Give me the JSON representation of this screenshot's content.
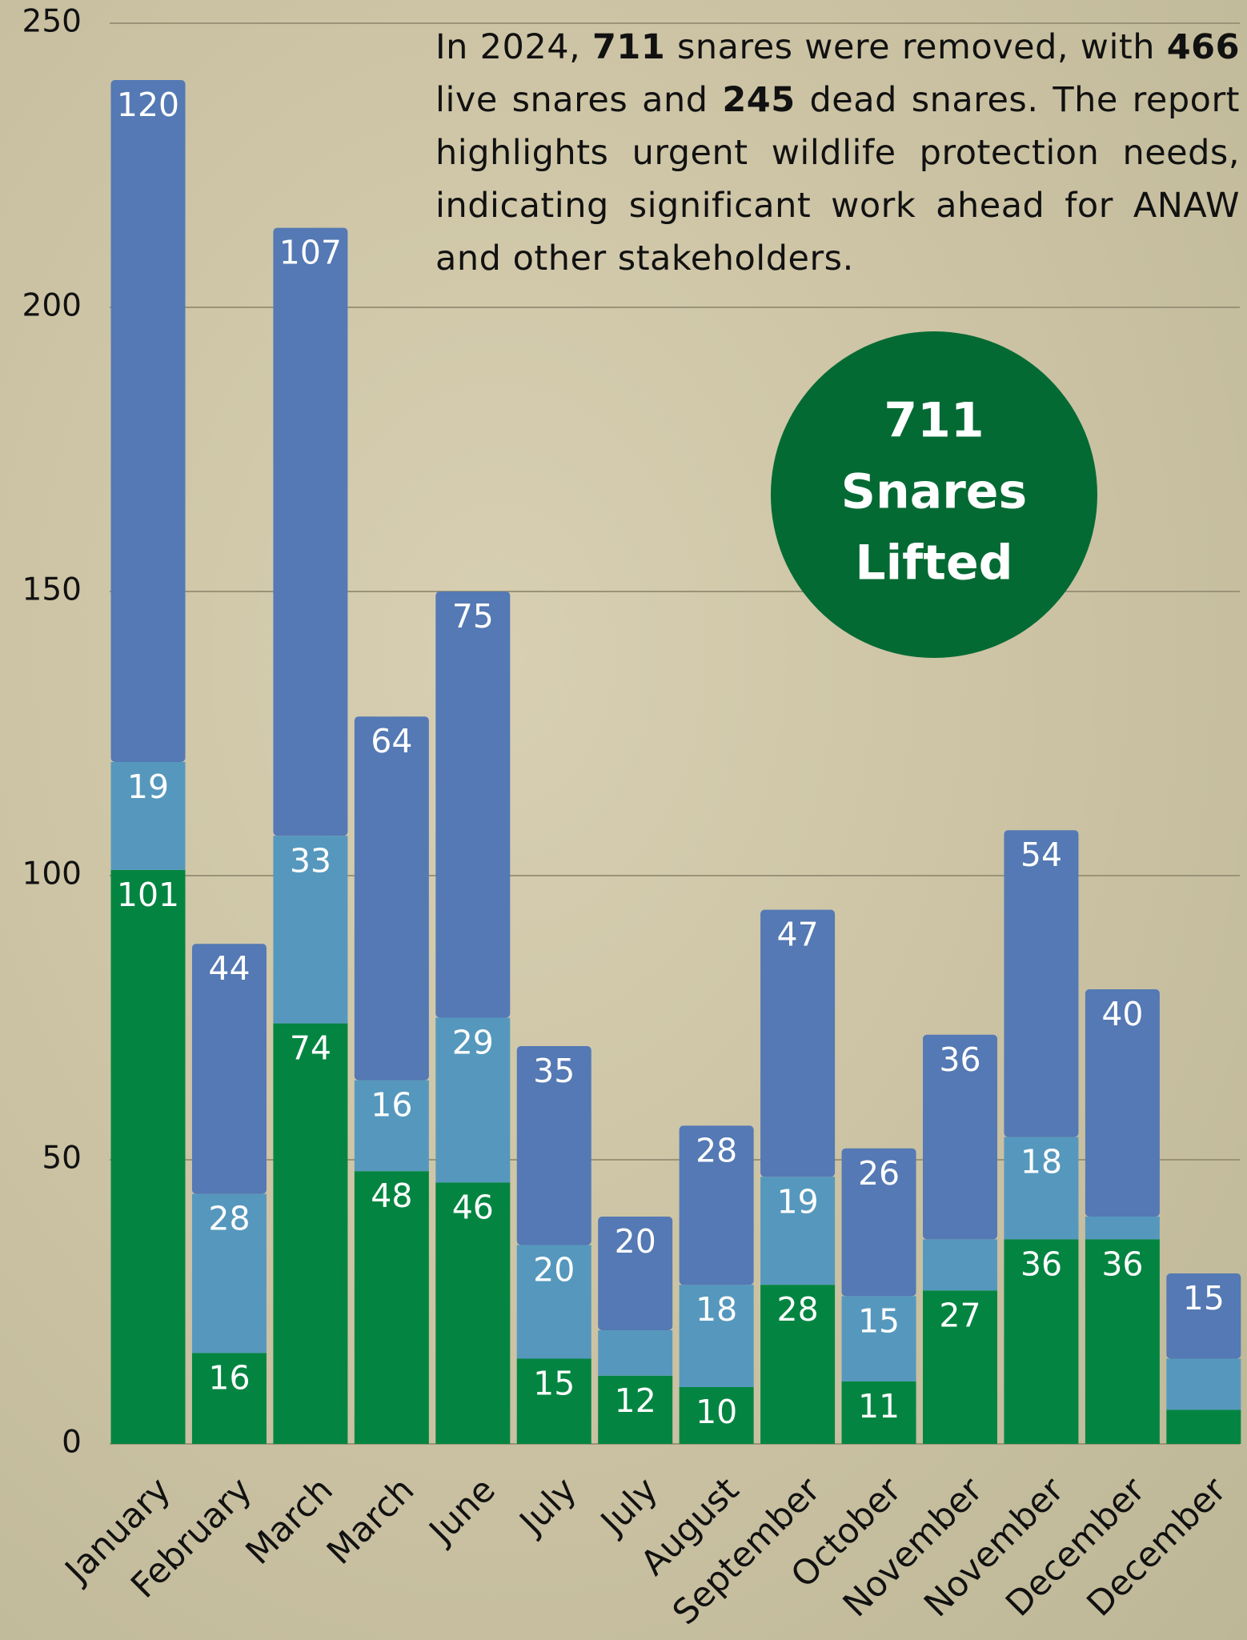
{
  "chart_data": {
    "type": "stacked_bar",
    "categories": [
      "January",
      "February",
      "March",
      "March",
      "June",
      "July",
      "July",
      "August",
      "September",
      "October",
      "November",
      "November",
      "December",
      "December"
    ],
    "series": [
      {
        "color": "#038541",
        "values": [
          101,
          16,
          74,
          48,
          46,
          15,
          12,
          10,
          28,
          11,
          27,
          36,
          36,
          6
        ],
        "value_labels": [
          "101",
          "16",
          "74",
          "48",
          "46",
          "15",
          "12",
          "10",
          "28",
          "11",
          "27",
          "36",
          "36",
          null
        ]
      },
      {
        "color": "#5698bd",
        "values": [
          19,
          28,
          33,
          16,
          29,
          20,
          8,
          18,
          19,
          15,
          9,
          18,
          4,
          9
        ],
        "value_labels": [
          "19",
          "28",
          "33",
          "16",
          "29",
          "20",
          null,
          "18",
          "19",
          "15",
          null,
          "18",
          null,
          null
        ]
      },
      {
        "color": "#5479b4",
        "values": [
          120,
          44,
          107,
          64,
          75,
          35,
          20,
          28,
          47,
          26,
          36,
          54,
          40,
          15
        ],
        "value_labels": [
          "120",
          "44",
          "107",
          "64",
          "75",
          "35",
          "20",
          "28",
          "47",
          "26",
          "36",
          "54",
          "40",
          "15"
        ]
      }
    ],
    "ylim": [
      0,
      250
    ],
    "yticks": [
      0,
      50,
      100,
      150,
      200,
      250
    ],
    "grid": true,
    "description": [
      {
        "text": "In 2024, "
      },
      {
        "text": "711",
        "bold": true
      },
      {
        "text": " snares were removed, with "
      },
      {
        "text": "466",
        "bold": true
      },
      {
        "text": " live snares and "
      },
      {
        "text": "245",
        "bold": true
      },
      {
        "text": " dead snares. The report highlights urgent wildlife protection needs, indicating significant work ahead for ANAW and other stakeholders."
      }
    ],
    "badge": {
      "lines": [
        "711",
        "Snares",
        "Lifted"
      ],
      "color": "#046a33"
    }
  }
}
